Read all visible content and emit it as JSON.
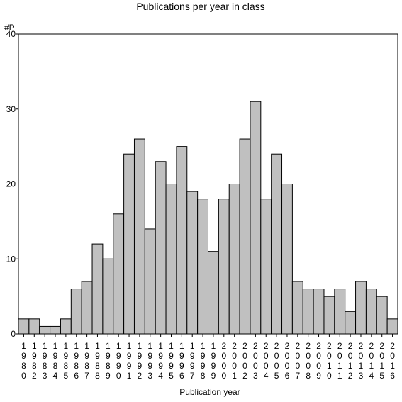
{
  "chart_data": {
    "type": "bar",
    "title": "Publications per year in class",
    "xlabel": "Publication year",
    "ylabel": "#P",
    "ylim": [
      0,
      40
    ],
    "yticks": [
      0,
      10,
      20,
      30,
      40
    ],
    "grid": false,
    "bar_color": "#c0c0c0",
    "categories": [
      "1980",
      "1982",
      "1983",
      "1984",
      "1985",
      "1986",
      "1987",
      "1988",
      "1989",
      "1990",
      "1991",
      "1992",
      "1993",
      "1994",
      "1995",
      "1996",
      "1997",
      "1998",
      "1999",
      "2000",
      "2001",
      "2002",
      "2003",
      "2004",
      "2005",
      "2006",
      "2007",
      "2008",
      "2009",
      "2010",
      "2011",
      "2012",
      "2013",
      "2014",
      "2015",
      "2016"
    ],
    "values": [
      2,
      2,
      1,
      1,
      2,
      6,
      7,
      12,
      10,
      16,
      24,
      26,
      14,
      23,
      20,
      25,
      19,
      18,
      11,
      18,
      20,
      26,
      31,
      18,
      24,
      20,
      7,
      6,
      6,
      5,
      6,
      3,
      7,
      6,
      5,
      2
    ]
  }
}
